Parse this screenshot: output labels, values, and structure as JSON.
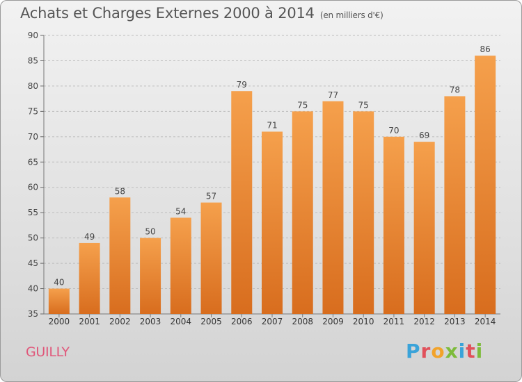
{
  "header": {
    "title": "Achats et Charges Externes 2000 à 2014",
    "unit": "(en milliers d'€)"
  },
  "footer": {
    "town": "GUILLY",
    "logo_text": "Proxiti"
  },
  "colors": {
    "bar_top": "#f5a04c",
    "bar_bottom": "#d86d1e",
    "town": "#e0577a",
    "logo_letters": [
      "#3aa3d9",
      "#e1505a",
      "#f2a32a",
      "#7dbb3b",
      "#3aa3d9",
      "#e1505a",
      "#7dbb3b"
    ]
  },
  "chart_data": {
    "type": "bar",
    "title": "Achats et Charges Externes 2000 à 2014",
    "subtitle": "(en milliers d'€)",
    "categories": [
      "2000",
      "2001",
      "2002",
      "2003",
      "2004",
      "2005",
      "2006",
      "2007",
      "2008",
      "2009",
      "2010",
      "2011",
      "2012",
      "2013",
      "2014"
    ],
    "values": [
      40,
      49,
      58,
      50,
      54,
      57,
      79,
      71,
      75,
      77,
      75,
      70,
      69,
      78,
      86
    ],
    "ylim": [
      35,
      90
    ],
    "yticks": [
      35,
      40,
      45,
      50,
      55,
      60,
      65,
      70,
      75,
      80,
      85,
      90
    ],
    "grid": "horizontal dashed",
    "xlabel": "",
    "ylabel": ""
  }
}
